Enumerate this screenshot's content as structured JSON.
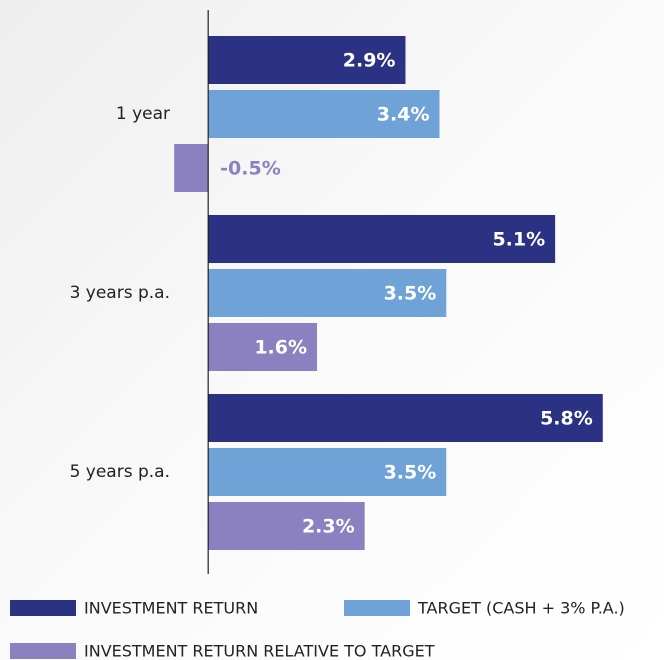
{
  "chart_data": {
    "type": "bar",
    "orientation": "horizontal",
    "categories": [
      "1 year",
      "3 years p.a.",
      "5 years p.a."
    ],
    "series": [
      {
        "name": "INVESTMENT RETURN",
        "color": "#2b3283",
        "values": [
          2.9,
          5.1,
          5.8
        ],
        "value_labels": [
          "2.9%",
          "5.1%",
          "5.8%"
        ]
      },
      {
        "name": "TARGET (CASH + 3% P.A.)",
        "color": "#6fa3d8",
        "values": [
          3.4,
          3.5,
          3.5
        ],
        "value_labels": [
          "3.4%",
          "3.5%",
          "3.5%"
        ]
      },
      {
        "name": "INVESTMENT RETURN RELATIVE TO TARGET",
        "color": "#8b80c0",
        "values": [
          -0.5,
          1.6,
          2.3
        ],
        "value_labels": [
          "-0.5%",
          "1.6%",
          "2.3%"
        ]
      }
    ],
    "xlim": [
      -3.06,
      6.7
    ]
  }
}
